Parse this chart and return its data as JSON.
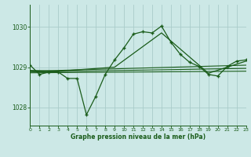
{
  "title": "Graphe pression niveau de la mer (hPa)",
  "background_color": "#cce8e6",
  "grid_color": "#aaccca",
  "line_color": "#1a5c1a",
  "xlim": [
    0,
    23
  ],
  "ylim": [
    1027.55,
    1030.55
  ],
  "yticks": [
    1028,
    1029,
    1030
  ],
  "xticks": [
    0,
    1,
    2,
    3,
    4,
    5,
    6,
    7,
    8,
    9,
    10,
    11,
    12,
    13,
    14,
    15,
    16,
    17,
    18,
    19,
    20,
    21,
    22,
    23
  ],
  "main_x": [
    0,
    1,
    2,
    3,
    4,
    5,
    6,
    7,
    8,
    9,
    10,
    11,
    12,
    13,
    14,
    15,
    16,
    17,
    18,
    19,
    20,
    21,
    22,
    23
  ],
  "main_y": [
    1029.05,
    1028.82,
    1028.88,
    1028.88,
    1028.72,
    1028.72,
    1027.82,
    1028.28,
    1028.82,
    1029.18,
    1029.48,
    1029.82,
    1029.88,
    1029.85,
    1030.02,
    1029.62,
    1029.32,
    1029.12,
    1029.02,
    1028.82,
    1028.78,
    1029.02,
    1029.15,
    1029.18
  ],
  "line2_x": [
    0,
    3,
    9,
    14,
    19,
    23
  ],
  "line2_y": [
    1028.92,
    1028.9,
    1029.0,
    1029.85,
    1028.85,
    1029.15
  ],
  "line3_x": [
    0,
    23
  ],
  "line3_y": [
    1028.9,
    1029.05
  ],
  "line4_x": [
    0,
    23
  ],
  "line4_y": [
    1028.88,
    1028.97
  ],
  "line5_x": [
    0,
    23
  ],
  "line5_y": [
    1028.86,
    1028.9
  ]
}
